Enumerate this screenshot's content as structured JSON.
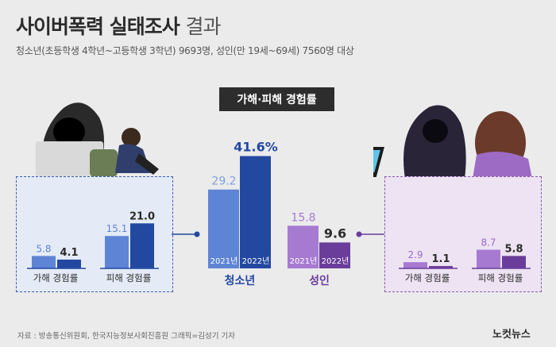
{
  "header": {
    "title_bold": "사이버폭력 실태조사",
    "title_light": "결과",
    "subtitle": "청소년(초등학생 4학년~고등학생 3학년) 9693명, 성인(만 19세~69세) 7560명 대상"
  },
  "badge": "가해·피해 경험률",
  "footer": {
    "source": "자료 : 방송통신위원회, 한국지능정보사회진흥원    그래픽=김성기 기자",
    "logo": "노컷뉴스"
  },
  "colors": {
    "blue_2021": "#5e84d6",
    "blue_2022": "#2348a0",
    "purple_2021": "#a77ad2",
    "purple_2022": "#6a3d9a"
  },
  "chart_data": [
    {
      "type": "bar",
      "title": "가해·피해 경험률",
      "categories": [
        "청소년",
        "성인"
      ],
      "series": [
        {
          "name": "2021년",
          "values": [
            29.2,
            15.8
          ]
        },
        {
          "name": "2022년",
          "values": [
            41.6,
            9.6
          ]
        }
      ],
      "value_labels": {
        "청소년": [
          "29.2",
          "41.6%"
        ],
        "성인": [
          "15.8",
          "9.6"
        ]
      },
      "unit": "%"
    },
    {
      "type": "bar",
      "group": "청소년",
      "categories": [
        "가해 경험률",
        "피해 경험률"
      ],
      "series": [
        {
          "name": "2021년",
          "values": [
            5.8,
            15.1
          ]
        },
        {
          "name": "2022년",
          "values": [
            4.1,
            21.0
          ]
        }
      ]
    },
    {
      "type": "bar",
      "group": "성인",
      "categories": [
        "가해 경험률",
        "피해 경험률"
      ],
      "series": [
        {
          "name": "2021년",
          "values": [
            2.9,
            8.7
          ]
        },
        {
          "name": "2022년",
          "values": [
            1.1,
            5.8
          ]
        }
      ]
    }
  ]
}
